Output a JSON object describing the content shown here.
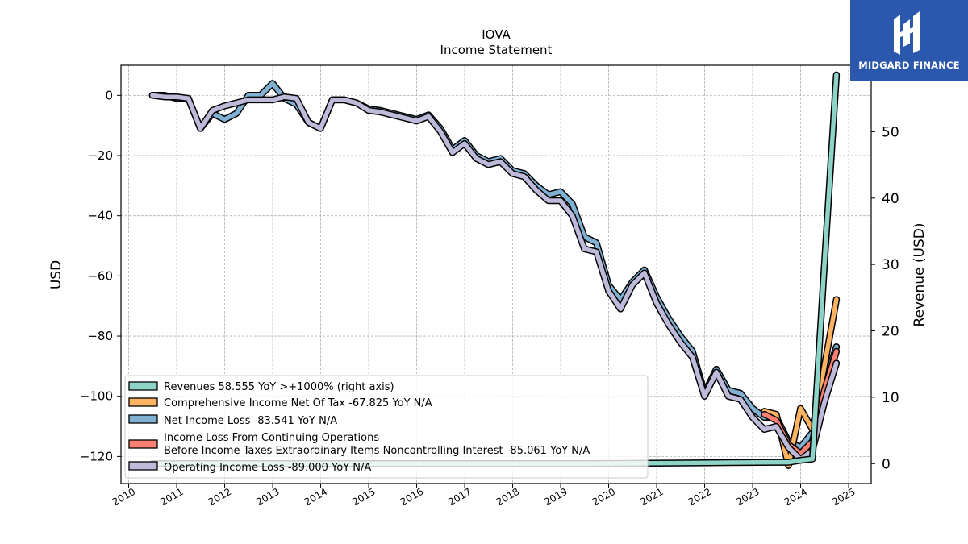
{
  "brand": {
    "name": "MIDGARD FINANCE",
    "color": "#2b58ad"
  },
  "chart_data": {
    "type": "line",
    "title": "IOVA",
    "subtitle": "Income Statement",
    "ylabel": "USD",
    "ylabel_right": "Revenue (USD)",
    "ylim": [
      -129,
      10
    ],
    "ylim_right": [
      -3.0,
      60.0
    ],
    "y_ticks": [
      0,
      -20,
      -40,
      -60,
      -80,
      -100,
      -120
    ],
    "y_ticks_right": [
      0,
      10,
      20,
      30,
      40,
      50
    ],
    "x_ticks": [
      "2010",
      "2011",
      "2012",
      "2013",
      "2014",
      "2015",
      "2016",
      "2017",
      "2018",
      "2019",
      "2020",
      "2021",
      "2022",
      "2023",
      "2024",
      "2025"
    ],
    "grid": true,
    "legend_position": "lower-left",
    "series": [
      {
        "name": "Revenues  58.555 YoY >+1000% (right axis)",
        "color": "#8dd3c7",
        "axis": "right",
        "points": [
          [
            "2010-06-30",
            0
          ],
          [
            "2011-06-30",
            0
          ],
          [
            "2012-06-30",
            0
          ],
          [
            "2013-06-30",
            0
          ],
          [
            "2014-06-30",
            0
          ],
          [
            "2015-06-30",
            0
          ],
          [
            "2016-06-30",
            0
          ],
          [
            "2017-06-30",
            0
          ],
          [
            "2018-06-30",
            0
          ],
          [
            "2019-06-30",
            0
          ],
          [
            "2020-06-30",
            0.05
          ],
          [
            "2021-06-30",
            0.1
          ],
          [
            "2022-06-30",
            0.15
          ],
          [
            "2023-06-30",
            0.2
          ],
          [
            "2023-09-30",
            0.2
          ],
          [
            "2023-12-31",
            0.5
          ],
          [
            "2024-03-31",
            0.7
          ],
          [
            "2024-06-30",
            30
          ],
          [
            "2024-09-30",
            58.555
          ]
        ]
      },
      {
        "name": "Comprehensive Income Net Of Tax  -67.825 YoY N/A",
        "color": "#fdb462",
        "axis": "left",
        "points": [
          [
            "2023-03-31",
            -105
          ],
          [
            "2023-06-30",
            -106
          ],
          [
            "2023-09-30",
            -123
          ],
          [
            "2023-12-31",
            -104
          ],
          [
            "2024-03-31",
            -111
          ],
          [
            "2024-06-30",
            -90
          ],
          [
            "2024-09-30",
            -67.825
          ]
        ]
      },
      {
        "name": "Net Income Loss  -83.541 YoY N/A",
        "color": "#80b1d3",
        "axis": "left",
        "points": [
          [
            "2010-06-30",
            0
          ],
          [
            "2010-09-30",
            0
          ],
          [
            "2010-12-31",
            -1
          ],
          [
            "2011-03-31",
            -1
          ],
          [
            "2011-06-30",
            -11
          ],
          [
            "2011-09-30",
            -6
          ],
          [
            "2011-12-31",
            -8
          ],
          [
            "2012-03-31",
            -6
          ],
          [
            "2012-06-30",
            0
          ],
          [
            "2012-09-30",
            0
          ],
          [
            "2012-12-31",
            4
          ],
          [
            "2013-03-31",
            -1
          ],
          [
            "2013-06-30",
            -3
          ],
          [
            "2013-09-30",
            -9
          ],
          [
            "2013-12-31",
            -11
          ],
          [
            "2014-03-31",
            -1.5
          ],
          [
            "2014-06-30",
            -1.5
          ],
          [
            "2014-09-30",
            -2.5
          ],
          [
            "2014-12-31",
            -4.5
          ],
          [
            "2015-03-31",
            -5
          ],
          [
            "2015-06-30",
            -6
          ],
          [
            "2015-09-30",
            -7
          ],
          [
            "2015-12-31",
            -8
          ],
          [
            "2016-03-31",
            -6.5
          ],
          [
            "2016-06-30",
            -11
          ],
          [
            "2016-09-30",
            -18
          ],
          [
            "2016-12-31",
            -15
          ],
          [
            "2017-03-31",
            -20
          ],
          [
            "2017-06-30",
            -22
          ],
          [
            "2017-09-30",
            -21
          ],
          [
            "2017-12-31",
            -25
          ],
          [
            "2018-03-31",
            -26
          ],
          [
            "2018-06-30",
            -30
          ],
          [
            "2018-09-30",
            -33
          ],
          [
            "2018-12-31",
            -32
          ],
          [
            "2019-03-31",
            -36
          ],
          [
            "2019-06-30",
            -47
          ],
          [
            "2019-09-30",
            -49
          ],
          [
            "2019-12-31",
            -63
          ],
          [
            "2020-03-31",
            -68
          ],
          [
            "2020-06-30",
            -62
          ],
          [
            "2020-09-30",
            -58
          ],
          [
            "2020-12-31",
            -67
          ],
          [
            "2021-03-31",
            -74
          ],
          [
            "2021-06-30",
            -80
          ],
          [
            "2021-09-30",
            -85
          ],
          [
            "2021-12-31",
            -99
          ],
          [
            "2022-03-31",
            -91
          ],
          [
            "2022-06-30",
            -98
          ],
          [
            "2022-09-30",
            -99
          ],
          [
            "2022-12-31",
            -104
          ],
          [
            "2023-03-31",
            -107
          ],
          [
            "2023-06-30",
            -107
          ],
          [
            "2023-09-30",
            -115
          ],
          [
            "2023-12-31",
            -117
          ],
          [
            "2024-03-31",
            -112
          ],
          [
            "2024-06-30",
            -96
          ],
          [
            "2024-09-30",
            -83.541
          ]
        ]
      },
      {
        "name": "Income Loss From Continuing Operations\nBefore Income Taxes Extraordinary Items Noncontrolling Interest  -85.061 YoY N/A",
        "color": "#fb8072",
        "axis": "left",
        "points": [
          [
            "2023-03-31",
            -106
          ],
          [
            "2023-06-30",
            -108
          ],
          [
            "2023-09-30",
            -116
          ],
          [
            "2023-12-31",
            -119
          ],
          [
            "2024-03-31",
            -115
          ],
          [
            "2024-06-30",
            -98
          ],
          [
            "2024-09-30",
            -85.061
          ]
        ]
      },
      {
        "name": "Operating Income Loss  -89.000 YoY N/A",
        "color": "#bebada",
        "axis": "left",
        "points": [
          [
            "2010-06-30",
            0
          ],
          [
            "2010-09-30",
            -0.5
          ],
          [
            "2010-12-31",
            -0.5
          ],
          [
            "2011-03-31",
            -1
          ],
          [
            "2011-06-30",
            -11
          ],
          [
            "2011-09-30",
            -5
          ],
          [
            "2011-12-31",
            -3.5
          ],
          [
            "2012-03-31",
            -2.5
          ],
          [
            "2012-06-30",
            -1.5
          ],
          [
            "2012-09-30",
            -1.5
          ],
          [
            "2012-12-31",
            -1.5
          ],
          [
            "2013-03-31",
            -0.5
          ],
          [
            "2013-06-30",
            -1
          ],
          [
            "2013-09-30",
            -9
          ],
          [
            "2013-12-31",
            -11
          ],
          [
            "2014-03-31",
            -1.5
          ],
          [
            "2014-06-30",
            -1.5
          ],
          [
            "2014-09-30",
            -2.5
          ],
          [
            "2014-12-31",
            -5
          ],
          [
            "2015-03-31",
            -5.5
          ],
          [
            "2015-06-30",
            -6.5
          ],
          [
            "2015-09-30",
            -7.5
          ],
          [
            "2015-12-31",
            -8.5
          ],
          [
            "2016-03-31",
            -7
          ],
          [
            "2016-06-30",
            -12
          ],
          [
            "2016-09-30",
            -19
          ],
          [
            "2016-12-31",
            -16
          ],
          [
            "2017-03-31",
            -21
          ],
          [
            "2017-06-30",
            -23
          ],
          [
            "2017-09-30",
            -22
          ],
          [
            "2017-12-31",
            -26
          ],
          [
            "2018-03-31",
            -27
          ],
          [
            "2018-06-30",
            -31.5
          ],
          [
            "2018-09-30",
            -35
          ],
          [
            "2018-12-31",
            -35
          ],
          [
            "2019-03-31",
            -40
          ],
          [
            "2019-06-30",
            -51
          ],
          [
            "2019-09-30",
            -52
          ],
          [
            "2019-12-31",
            -65
          ],
          [
            "2020-03-31",
            -71
          ],
          [
            "2020-06-30",
            -63
          ],
          [
            "2020-09-30",
            -59
          ],
          [
            "2020-12-31",
            -69
          ],
          [
            "2021-03-31",
            -76
          ],
          [
            "2021-06-30",
            -82
          ],
          [
            "2021-09-30",
            -87
          ],
          [
            "2021-12-31",
            -100
          ],
          [
            "2022-03-31",
            -92
          ],
          [
            "2022-06-30",
            -100
          ],
          [
            "2022-09-30",
            -101
          ],
          [
            "2022-12-31",
            -107
          ],
          [
            "2023-03-31",
            -111
          ],
          [
            "2023-06-30",
            -110
          ],
          [
            "2023-09-30",
            -117
          ],
          [
            "2023-12-31",
            -121
          ],
          [
            "2024-03-31",
            -118
          ],
          [
            "2024-06-30",
            -102
          ],
          [
            "2024-09-30",
            -89.0
          ]
        ]
      }
    ]
  }
}
